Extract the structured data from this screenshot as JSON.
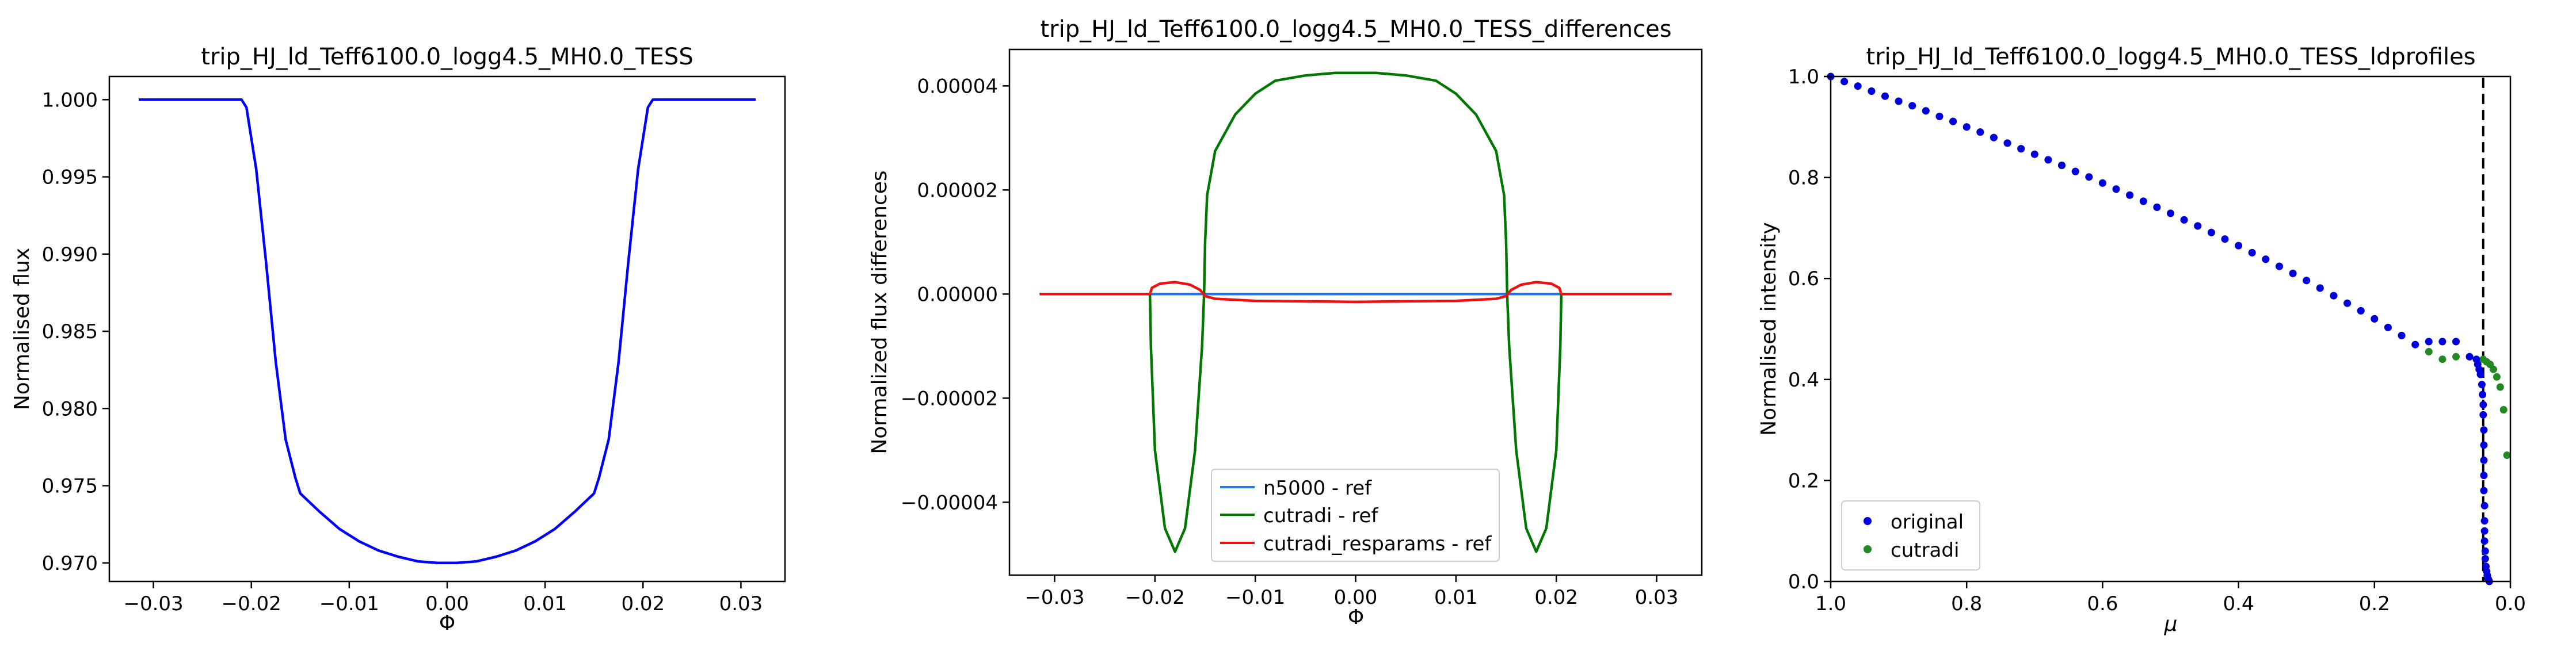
{
  "chart_data": [
    {
      "type": "line",
      "title": "trip_HJ_ld_Teff6100.0_logg4.5_MH0.0_TESS",
      "xlabel": "Φ",
      "ylabel": "Normalised flux",
      "xlim": [
        -0.0345,
        0.0345
      ],
      "ylim": [
        0.9688,
        1.0015
      ],
      "xticks": [
        -0.03,
        -0.02,
        -0.01,
        0.0,
        0.01,
        0.02,
        0.03
      ],
      "xtick_labels": [
        "−0.03",
        "−0.02",
        "−0.01",
        "0.00",
        "0.01",
        "0.02",
        "0.03"
      ],
      "yticks": [
        0.97,
        0.975,
        0.98,
        0.985,
        0.99,
        0.995,
        1.0
      ],
      "ytick_labels": [
        "0.970",
        "0.975",
        "0.980",
        "0.985",
        "0.990",
        "0.995",
        "1.000"
      ],
      "series": [
        {
          "color": "#0000ff",
          "x": [
            -0.0315,
            -0.025,
            -0.021,
            -0.0205,
            -0.0195,
            -0.0185,
            -0.0175,
            -0.0165,
            -0.0155,
            -0.015,
            -0.013,
            -0.011,
            -0.009,
            -0.007,
            -0.005,
            -0.003,
            -0.001,
            0.0,
            0.001,
            0.003,
            0.005,
            0.007,
            0.009,
            0.011,
            0.013,
            0.015,
            0.0155,
            0.0165,
            0.0175,
            0.0185,
            0.0195,
            0.0205,
            0.021,
            0.025,
            0.0315
          ],
          "y": [
            1.0,
            1.0,
            1.0,
            0.9995,
            0.9955,
            0.9895,
            0.983,
            0.978,
            0.9755,
            0.9745,
            0.9733,
            0.9722,
            0.9714,
            0.9708,
            0.9704,
            0.9701,
            0.97,
            0.97,
            0.97,
            0.9701,
            0.9704,
            0.9708,
            0.9714,
            0.9722,
            0.9733,
            0.9745,
            0.9755,
            0.978,
            0.983,
            0.9895,
            0.9955,
            0.9995,
            1.0,
            1.0,
            1.0
          ]
        }
      ]
    },
    {
      "type": "line",
      "title": "trip_HJ_ld_Teff6100.0_logg4.5_MH0.0_TESS_differences",
      "xlabel": "Φ",
      "ylabel": "Normalized flux differences",
      "xlim": [
        -0.0345,
        0.0345
      ],
      "ylim": [
        -5.4e-05,
        4.7e-05
      ],
      "xticks": [
        -0.03,
        -0.02,
        -0.01,
        0.0,
        0.01,
        0.02,
        0.03
      ],
      "xtick_labels": [
        "−0.03",
        "−0.02",
        "−0.01",
        "0.00",
        "0.01",
        "0.02",
        "0.03"
      ],
      "yticks": [
        -4e-05,
        -2e-05,
        0.0,
        2e-05,
        4e-05
      ],
      "ytick_labels": [
        "−0.00004",
        "−0.00002",
        "0.00000",
        "0.00002",
        "0.00004"
      ],
      "legend_position": "lower center",
      "series": [
        {
          "name": "n5000 - ref",
          "color": "#1f77f4",
          "x": [
            -0.0205,
            -0.015,
            -0.01,
            0.0,
            0.01,
            0.015,
            0.0205
          ],
          "y": [
            0.0,
            0.0,
            0.0,
            0.0,
            0.0,
            0.0,
            0.0
          ]
        },
        {
          "name": "cutradi - ref",
          "color": "#007700",
          "x": [
            -0.0205,
            -0.0204,
            -0.02,
            -0.019,
            -0.018,
            -0.017,
            -0.016,
            -0.0153,
            -0.0151,
            -0.015,
            -0.0148,
            -0.014,
            -0.012,
            -0.01,
            -0.008,
            -0.005,
            -0.002,
            0.0,
            0.002,
            0.005,
            0.008,
            0.01,
            0.012,
            0.014,
            0.0148,
            0.015,
            0.0151,
            0.0153,
            0.016,
            0.017,
            0.018,
            0.019,
            0.02,
            0.0204,
            0.0205
          ],
          "y": [
            0.0,
            -1e-05,
            -3e-05,
            -4.5e-05,
            -4.95e-05,
            -4.5e-05,
            -3e-05,
            -1e-05,
            0.0,
            1e-05,
            1.9e-05,
            2.75e-05,
            3.45e-05,
            3.85e-05,
            4.1e-05,
            4.2e-05,
            4.25e-05,
            4.25e-05,
            4.25e-05,
            4.2e-05,
            4.1e-05,
            3.85e-05,
            3.45e-05,
            2.75e-05,
            1.9e-05,
            1e-05,
            0.0,
            -1e-05,
            -3e-05,
            -4.5e-05,
            -4.95e-05,
            -4.5e-05,
            -3e-05,
            -1e-05,
            0.0
          ]
        },
        {
          "name": "cutradi_resparams - ref",
          "color": "#ee1111",
          "x": [
            -0.0315,
            -0.0205,
            -0.0203,
            -0.0195,
            -0.018,
            -0.0165,
            -0.0155,
            -0.015,
            -0.014,
            -0.01,
            0.0,
            0.01,
            0.014,
            0.015,
            0.0155,
            0.0165,
            0.018,
            0.0195,
            0.0203,
            0.0205,
            0.0315
          ],
          "y": [
            0.0,
            0.0,
            1.2e-06,
            2e-06,
            2.3e-06,
            1.8e-06,
            8e-07,
            -4e-07,
            -9e-07,
            -1.3e-06,
            -1.5e-06,
            -1.3e-06,
            -9e-07,
            -4e-07,
            8e-07,
            1.8e-06,
            2.3e-06,
            2e-06,
            1.2e-06,
            0.0,
            0.0
          ]
        }
      ]
    },
    {
      "type": "scatter",
      "title": "trip_HJ_ld_Teff6100.0_logg4.5_MH0.0_TESS_ldprofiles",
      "xlabel": "μ",
      "ylabel": "Normalised intensity",
      "xlim": [
        1.0,
        0.0
      ],
      "ylim": [
        0.0,
        1.0
      ],
      "xticks": [
        1.0,
        0.8,
        0.6,
        0.4,
        0.2,
        0.0
      ],
      "xtick_labels": [
        "1.0",
        "0.8",
        "0.6",
        "0.4",
        "0.2",
        "0.0"
      ],
      "yticks": [
        0.0,
        0.2,
        0.4,
        0.6,
        0.8,
        1.0
      ],
      "ytick_labels": [
        "0.0",
        "0.2",
        "0.4",
        "0.6",
        "0.8",
        "1.0"
      ],
      "vline_x": 0.04,
      "legend_position": "lower left",
      "series": [
        {
          "name": "original",
          "color": "#0000dd",
          "x": [
            1.0,
            0.98,
            0.96,
            0.94,
            0.92,
            0.9,
            0.88,
            0.86,
            0.84,
            0.82,
            0.8,
            0.78,
            0.76,
            0.74,
            0.72,
            0.7,
            0.68,
            0.66,
            0.64,
            0.62,
            0.6,
            0.58,
            0.56,
            0.54,
            0.52,
            0.5,
            0.48,
            0.46,
            0.44,
            0.42,
            0.4,
            0.38,
            0.36,
            0.34,
            0.32,
            0.3,
            0.28,
            0.26,
            0.24,
            0.22,
            0.2,
            0.18,
            0.16,
            0.14,
            0.12,
            0.1,
            0.08,
            0.06,
            0.05,
            0.048,
            0.046,
            0.044,
            0.042,
            0.041,
            0.04,
            0.04,
            0.039,
            0.039,
            0.039,
            0.039,
            0.039,
            0.038,
            0.038,
            0.038,
            0.038,
            0.037,
            0.037,
            0.036,
            0.035,
            0.034,
            0.033,
            0.032,
            0.031
          ],
          "y": [
            1.0,
            0.99,
            0.981,
            0.971,
            0.961,
            0.951,
            0.942,
            0.932,
            0.921,
            0.911,
            0.9,
            0.89,
            0.879,
            0.868,
            0.857,
            0.846,
            0.835,
            0.824,
            0.812,
            0.801,
            0.789,
            0.777,
            0.765,
            0.753,
            0.741,
            0.729,
            0.716,
            0.704,
            0.691,
            0.678,
            0.665,
            0.651,
            0.638,
            0.624,
            0.61,
            0.596,
            0.581,
            0.566,
            0.551,
            0.536,
            0.52,
            0.503,
            0.487,
            0.469,
            0.475,
            0.475,
            0.475,
            0.445,
            0.44,
            0.43,
            0.42,
            0.41,
            0.39,
            0.37,
            0.35,
            0.33,
            0.3,
            0.27,
            0.24,
            0.21,
            0.18,
            0.15,
            0.12,
            0.1,
            0.08,
            0.06,
            0.045,
            0.03,
            0.02,
            0.012,
            0.006,
            0.003,
            0.0
          ]
        },
        {
          "name": "cutradi",
          "color": "#228822",
          "x": [
            1.0,
            0.98,
            0.96,
            0.94,
            0.92,
            0.9,
            0.88,
            0.86,
            0.84,
            0.82,
            0.8,
            0.78,
            0.76,
            0.74,
            0.72,
            0.7,
            0.68,
            0.66,
            0.64,
            0.62,
            0.6,
            0.58,
            0.56,
            0.54,
            0.52,
            0.5,
            0.48,
            0.46,
            0.44,
            0.42,
            0.4,
            0.38,
            0.36,
            0.34,
            0.32,
            0.3,
            0.28,
            0.26,
            0.24,
            0.22,
            0.2,
            0.18,
            0.16,
            0.14,
            0.12,
            0.1,
            0.08,
            0.06,
            0.04,
            0.035,
            0.03,
            0.025,
            0.02,
            0.015,
            0.01,
            0.005
          ],
          "y": [
            1.0,
            0.99,
            0.981,
            0.971,
            0.961,
            0.951,
            0.942,
            0.932,
            0.921,
            0.911,
            0.9,
            0.89,
            0.879,
            0.868,
            0.857,
            0.846,
            0.835,
            0.824,
            0.812,
            0.801,
            0.789,
            0.777,
            0.765,
            0.753,
            0.741,
            0.729,
            0.716,
            0.704,
            0.691,
            0.678,
            0.665,
            0.651,
            0.638,
            0.624,
            0.61,
            0.596,
            0.581,
            0.566,
            0.551,
            0.536,
            0.52,
            0.503,
            0.487,
            0.469,
            0.455,
            0.44,
            0.445,
            0.445,
            0.44,
            0.435,
            0.43,
            0.42,
            0.405,
            0.385,
            0.34,
            0.25
          ]
        }
      ]
    }
  ]
}
